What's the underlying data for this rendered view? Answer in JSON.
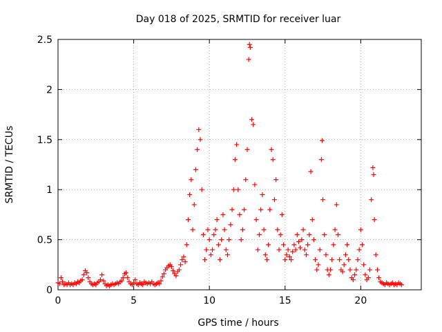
{
  "chart_data": {
    "type": "scatter",
    "title": "Day 018 of 2025, SRMTID for receiver luar",
    "xlabel": "GPS time / hours",
    "ylabel": "SRMTID / TECUs",
    "xlim": [
      0,
      24
    ],
    "ylim": [
      0,
      2.5
    ],
    "xticks": [
      0,
      5,
      10,
      15,
      20
    ],
    "xtick_labels": [
      "0",
      "5",
      "10",
      "15",
      "20"
    ],
    "yticks": [
      0,
      0.5,
      1,
      1.5,
      2,
      2.5
    ],
    "ytick_labels": [
      "0",
      "0.5",
      "1",
      "1.5",
      "2",
      "2.5"
    ],
    "grid": true,
    "marker": "+",
    "color": "#ff0000",
    "series": [
      {
        "name": "SRMTID",
        "points": [
          [
            0.0,
            0.07
          ],
          [
            0.1,
            0.06
          ],
          [
            0.2,
            0.12
          ],
          [
            0.3,
            0.08
          ],
          [
            0.4,
            0.05
          ],
          [
            0.5,
            0.06
          ],
          [
            0.6,
            0.05
          ],
          [
            0.7,
            0.07
          ],
          [
            0.8,
            0.05
          ],
          [
            0.9,
            0.06
          ],
          [
            1.0,
            0.05
          ],
          [
            1.1,
            0.07
          ],
          [
            1.2,
            0.06
          ],
          [
            1.3,
            0.08
          ],
          [
            1.4,
            0.07
          ],
          [
            1.5,
            0.09
          ],
          [
            1.6,
            0.1
          ],
          [
            1.7,
            0.15
          ],
          [
            1.8,
            0.19
          ],
          [
            1.9,
            0.17
          ],
          [
            2.0,
            0.12
          ],
          [
            2.1,
            0.08
          ],
          [
            2.2,
            0.06
          ],
          [
            2.3,
            0.05
          ],
          [
            2.4,
            0.06
          ],
          [
            2.5,
            0.05
          ],
          [
            2.6,
            0.07
          ],
          [
            2.7,
            0.08
          ],
          [
            2.8,
            0.1
          ],
          [
            2.9,
            0.15
          ],
          [
            3.0,
            0.09
          ],
          [
            3.1,
            0.06
          ],
          [
            3.2,
            0.04
          ],
          [
            3.3,
            0.05
          ],
          [
            3.4,
            0.04
          ],
          [
            3.5,
            0.05
          ],
          [
            3.6,
            0.06
          ],
          [
            3.7,
            0.05
          ],
          [
            3.8,
            0.06
          ],
          [
            3.9,
            0.07
          ],
          [
            4.0,
            0.06
          ],
          [
            4.1,
            0.08
          ],
          [
            4.2,
            0.09
          ],
          [
            4.3,
            0.12
          ],
          [
            4.4,
            0.16
          ],
          [
            4.5,
            0.17
          ],
          [
            4.6,
            0.12
          ],
          [
            4.7,
            0.08
          ],
          [
            4.8,
            0.06
          ],
          [
            4.9,
            0.05
          ],
          [
            5.0,
            0.07
          ],
          [
            5.1,
            0.1
          ],
          [
            5.2,
            0.06
          ],
          [
            5.3,
            0.05
          ],
          [
            5.4,
            0.07
          ],
          [
            5.5,
            0.06
          ],
          [
            5.6,
            0.05
          ],
          [
            5.7,
            0.08
          ],
          [
            5.8,
            0.07
          ],
          [
            5.9,
            0.06
          ],
          [
            6.0,
            0.07
          ],
          [
            6.1,
            0.06
          ],
          [
            6.2,
            0.08
          ],
          [
            6.3,
            0.06
          ],
          [
            6.4,
            0.05
          ],
          [
            6.5,
            0.06
          ],
          [
            6.6,
            0.07
          ],
          [
            6.7,
            0.06
          ],
          [
            6.8,
            0.09
          ],
          [
            6.9,
            0.13
          ],
          [
            7.0,
            0.16
          ],
          [
            7.1,
            0.2
          ],
          [
            7.2,
            0.22
          ],
          [
            7.3,
            0.24
          ],
          [
            7.4,
            0.25
          ],
          [
            7.5,
            0.23
          ],
          [
            7.6,
            0.19
          ],
          [
            7.7,
            0.16
          ],
          [
            7.8,
            0.14
          ],
          [
            7.9,
            0.18
          ],
          [
            8.0,
            0.2
          ],
          [
            8.1,
            0.25
          ],
          [
            8.2,
            0.3
          ],
          [
            8.3,
            0.33
          ],
          [
            8.4,
            0.28
          ],
          [
            8.5,
            0.45
          ],
          [
            8.6,
            0.7
          ],
          [
            8.7,
            0.95
          ],
          [
            8.8,
            1.1
          ],
          [
            8.9,
            0.6
          ],
          [
            9.0,
            0.85
          ],
          [
            9.1,
            1.2
          ],
          [
            9.2,
            1.4
          ],
          [
            9.3,
            1.6
          ],
          [
            9.4,
            1.5
          ],
          [
            9.5,
            1.0
          ],
          [
            9.6,
            0.55
          ],
          [
            9.7,
            0.3
          ],
          [
            9.8,
            0.4
          ],
          [
            9.9,
            0.6
          ],
          [
            10.0,
            0.5
          ],
          [
            10.1,
            0.35
          ],
          [
            10.2,
            0.4
          ],
          [
            10.3,
            0.55
          ],
          [
            10.4,
            0.6
          ],
          [
            10.5,
            0.7
          ],
          [
            10.6,
            0.45
          ],
          [
            10.7,
            0.3
          ],
          [
            10.8,
            0.5
          ],
          [
            10.9,
            0.75
          ],
          [
            11.0,
            0.6
          ],
          [
            11.1,
            0.4
          ],
          [
            11.2,
            0.35
          ],
          [
            11.3,
            0.5
          ],
          [
            11.4,
            0.65
          ],
          [
            11.5,
            0.8
          ],
          [
            11.6,
            1.0
          ],
          [
            11.7,
            1.3
          ],
          [
            11.8,
            1.45
          ],
          [
            11.9,
            1.0
          ],
          [
            12.0,
            0.75
          ],
          [
            12.1,
            0.5
          ],
          [
            12.2,
            0.6
          ],
          [
            12.3,
            0.8
          ],
          [
            12.4,
            1.1
          ],
          [
            12.5,
            1.4
          ],
          [
            12.6,
            2.3
          ],
          [
            12.65,
            2.45
          ],
          [
            12.7,
            2.42
          ],
          [
            12.8,
            1.7
          ],
          [
            12.9,
            1.65
          ],
          [
            13.0,
            1.05
          ],
          [
            13.1,
            0.7
          ],
          [
            13.2,
            0.4
          ],
          [
            13.3,
            0.55
          ],
          [
            13.4,
            0.8
          ],
          [
            13.5,
            0.95
          ],
          [
            13.6,
            0.6
          ],
          [
            13.7,
            0.35
          ],
          [
            13.8,
            0.3
          ],
          [
            13.9,
            0.45
          ],
          [
            14.0,
            0.8
          ],
          [
            14.1,
            1.4
          ],
          [
            14.2,
            1.3
          ],
          [
            14.3,
            0.9
          ],
          [
            14.4,
            1.1
          ],
          [
            14.5,
            0.6
          ],
          [
            14.6,
            0.4
          ],
          [
            14.7,
            0.55
          ],
          [
            14.8,
            0.75
          ],
          [
            14.9,
            0.45
          ],
          [
            15.0,
            0.3
          ],
          [
            15.1,
            0.35
          ],
          [
            15.2,
            0.4
          ],
          [
            15.3,
            0.33
          ],
          [
            15.4,
            0.3
          ],
          [
            15.5,
            0.38
          ],
          [
            15.6,
            0.45
          ],
          [
            15.7,
            0.4
          ],
          [
            15.8,
            0.55
          ],
          [
            15.9,
            0.48
          ],
          [
            16.0,
            0.42
          ],
          [
            16.1,
            0.5
          ],
          [
            16.2,
            0.6
          ],
          [
            16.3,
            0.4
          ],
          [
            16.4,
            0.35
          ],
          [
            16.5,
            0.45
          ],
          [
            16.6,
            0.55
          ],
          [
            16.7,
            1.18
          ],
          [
            16.8,
            0.7
          ],
          [
            16.9,
            0.5
          ],
          [
            17.0,
            0.3
          ],
          [
            17.1,
            0.2
          ],
          [
            17.2,
            0.25
          ],
          [
            17.3,
            0.4
          ],
          [
            17.4,
            1.3
          ],
          [
            17.45,
            1.49
          ],
          [
            17.5,
            0.9
          ],
          [
            17.6,
            0.55
          ],
          [
            17.7,
            0.35
          ],
          [
            17.8,
            0.2
          ],
          [
            17.9,
            0.15
          ],
          [
            18.0,
            0.2
          ],
          [
            18.1,
            0.3
          ],
          [
            18.2,
            0.45
          ],
          [
            18.3,
            0.6
          ],
          [
            18.4,
            0.85
          ],
          [
            18.5,
            0.55
          ],
          [
            18.6,
            0.3
          ],
          [
            18.7,
            0.2
          ],
          [
            18.8,
            0.18
          ],
          [
            18.9,
            0.25
          ],
          [
            19.0,
            0.35
          ],
          [
            19.1,
            0.45
          ],
          [
            19.2,
            0.3
          ],
          [
            19.3,
            0.2
          ],
          [
            19.4,
            0.12
          ],
          [
            19.5,
            0.1
          ],
          [
            19.6,
            0.15
          ],
          [
            19.7,
            0.2
          ],
          [
            19.8,
            0.3
          ],
          [
            19.9,
            0.4
          ],
          [
            20.0,
            0.6
          ],
          [
            20.1,
            0.45
          ],
          [
            20.2,
            0.25
          ],
          [
            20.3,
            0.15
          ],
          [
            20.4,
            0.1
          ],
          [
            20.5,
            0.12
          ],
          [
            20.6,
            0.2
          ],
          [
            20.7,
            0.9
          ],
          [
            20.8,
            1.22
          ],
          [
            20.85,
            1.15
          ],
          [
            20.9,
            0.7
          ],
          [
            21.0,
            0.35
          ],
          [
            21.1,
            0.2
          ],
          [
            21.2,
            0.12
          ],
          [
            21.3,
            0.08
          ],
          [
            21.4,
            0.07
          ],
          [
            21.5,
            0.06
          ],
          [
            21.6,
            0.05
          ],
          [
            21.7,
            0.07
          ],
          [
            21.8,
            0.06
          ],
          [
            21.9,
            0.05
          ],
          [
            22.0,
            0.06
          ],
          [
            22.1,
            0.07
          ],
          [
            22.2,
            0.05
          ],
          [
            22.3,
            0.06
          ],
          [
            22.4,
            0.05
          ],
          [
            22.5,
            0.07
          ],
          [
            22.6,
            0.06
          ],
          [
            22.7,
            0.05
          ]
        ]
      }
    ]
  }
}
